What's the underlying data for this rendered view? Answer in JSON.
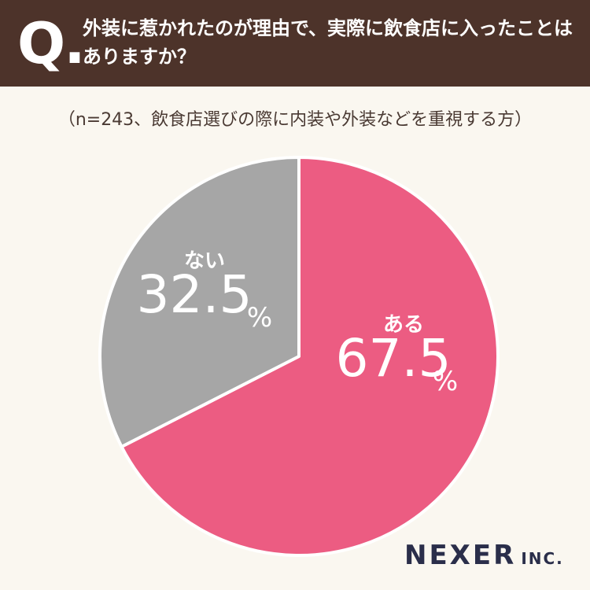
{
  "header": {
    "q_letter": "Q.",
    "question": "外装に惹かれたのが理由で、実際に飲食店に入ったことはありますか？"
  },
  "subtitle": "（n=243、飲食店選びの際に内装や外装などを重視する方）",
  "chart_data": {
    "type": "pie",
    "title": "外装に惹かれたのが理由で、実際に飲食店に入ったことはありますか？",
    "slices": [
      {
        "label": "ある",
        "value": 67.5,
        "display": "67.5",
        "color": "#ec5c82"
      },
      {
        "label": "ない",
        "value": 32.5,
        "display": "32.5",
        "color": "#a6a6a6"
      }
    ],
    "unit": "%",
    "start": "12 o'clock, clockwise"
  },
  "logo": {
    "name": "NEXER",
    "suffix": "INC."
  },
  "colors": {
    "header_bg": "#4d332a",
    "page_bg": "#faf7f0",
    "pink": "#ec5c82",
    "gray": "#a6a6a6"
  }
}
